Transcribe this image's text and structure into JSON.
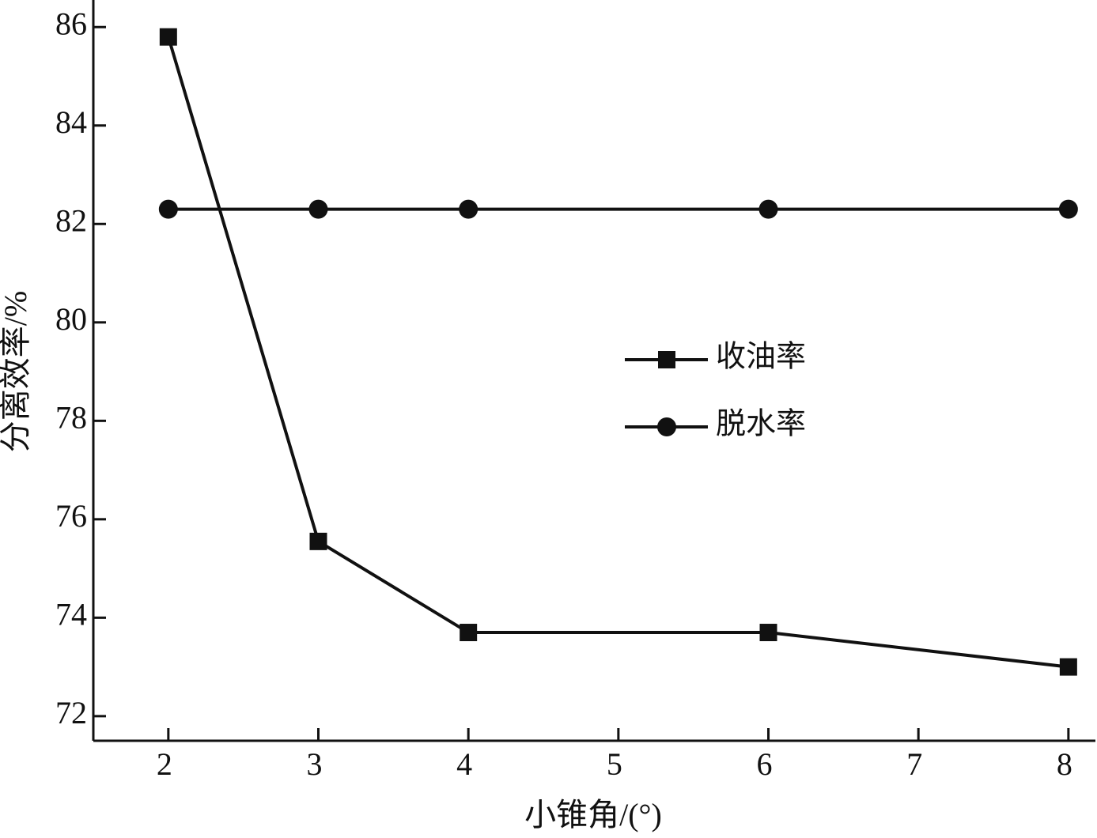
{
  "chart_data": {
    "type": "line",
    "x_label": "小锥角/(°)",
    "y_label": "分离效率/%",
    "x": [
      2,
      3,
      4,
      6,
      8
    ],
    "series": [
      {
        "name": "收油率",
        "color": "#111111",
        "marker": "square",
        "values": [
          85.8,
          75.55,
          73.7,
          73.7,
          73.0
        ]
      },
      {
        "name": "脱水率",
        "color": "#111111",
        "marker": "circle",
        "values": [
          82.3,
          82.3,
          82.3,
          82.3,
          82.3
        ]
      }
    ],
    "xlim": [
      1.5,
      8.18
    ],
    "xticks": [
      2,
      3,
      4,
      5,
      6,
      7,
      8
    ],
    "ylim": [
      71.5,
      86.55
    ],
    "yticks": [
      72,
      74,
      76,
      78,
      80,
      82,
      84,
      86
    ],
    "grid": false
  }
}
